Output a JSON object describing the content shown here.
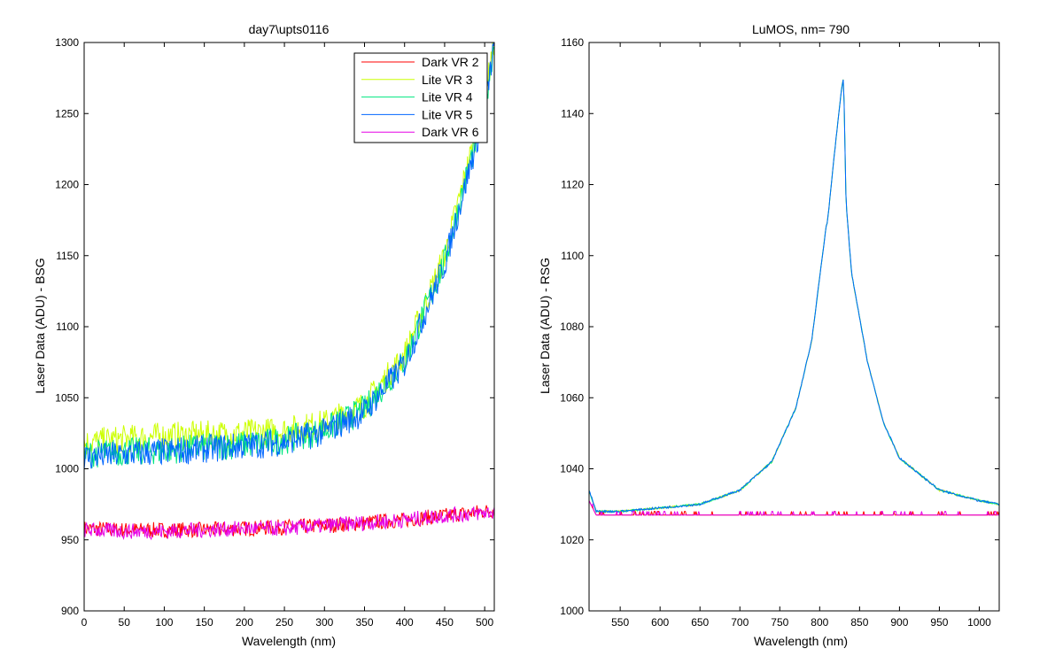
{
  "chart_data": [
    {
      "type": "line",
      "title": "day7\\upts0116",
      "xlabel": "Wavelength (nm)",
      "ylabel": "Laser Data (ADU) - BSG",
      "xlim": [
        0,
        512
      ],
      "ylim": [
        900,
        1300
      ],
      "xticks": [
        "0",
        "50",
        "100",
        "150",
        "200",
        "250",
        "300",
        "350",
        "400",
        "450",
        "500"
      ],
      "yticks": [
        "900",
        "950",
        "1000",
        "1050",
        "1100",
        "1150",
        "1200",
        "1250",
        "1300"
      ],
      "grid": false,
      "legend": "top-right",
      "series": [
        {
          "name": "Dark VR 2",
          "color": "#ff0000",
          "x": [
            0,
            50,
            100,
            150,
            200,
            250,
            300,
            350,
            400,
            450,
            500,
            512
          ],
          "y": [
            958,
            957,
            957,
            957,
            958,
            959,
            960,
            962,
            964,
            967,
            970,
            971
          ]
        },
        {
          "name": "Lite VR 3",
          "color": "#ccff00",
          "x": [
            0,
            50,
            100,
            150,
            200,
            250,
            300,
            350,
            400,
            450,
            500,
            512
          ],
          "y": [
            1018,
            1021,
            1023,
            1024,
            1025,
            1027,
            1032,
            1045,
            1080,
            1150,
            1260,
            1300
          ]
        },
        {
          "name": "Lite VR 4",
          "color": "#00e680",
          "x": [
            0,
            50,
            100,
            150,
            200,
            250,
            300,
            350,
            400,
            450,
            500,
            512
          ],
          "y": [
            1010,
            1012,
            1013,
            1015,
            1017,
            1020,
            1027,
            1042,
            1076,
            1146,
            1255,
            1300
          ]
        },
        {
          "name": "Lite VR 5",
          "color": "#0066ff",
          "x": [
            0,
            50,
            100,
            150,
            200,
            250,
            300,
            350,
            400,
            450,
            500,
            512
          ],
          "y": [
            1008,
            1010,
            1012,
            1014,
            1016,
            1019,
            1026,
            1040,
            1074,
            1144,
            1252,
            1300
          ]
        },
        {
          "name": "Dark VR 6",
          "color": "#e600e6",
          "x": [
            0,
            50,
            100,
            150,
            200,
            250,
            300,
            350,
            400,
            450,
            500,
            512
          ],
          "y": [
            957,
            956,
            956,
            957,
            958,
            958,
            960,
            962,
            964,
            967,
            969,
            970
          ]
        }
      ]
    },
    {
      "type": "line",
      "title": "LuMOS, nm= 790",
      "xlabel": "Wavelength (nm)",
      "ylabel": "Laser Data (ADU) - RSG",
      "xlim": [
        511,
        1025
      ],
      "ylim": [
        1000,
        1160
      ],
      "xticks": [
        "550",
        "600",
        "650",
        "700",
        "750",
        "800",
        "850",
        "900",
        "950",
        "1000"
      ],
      "yticks": [
        "1000",
        "1020",
        "1040",
        "1060",
        "1080",
        "1100",
        "1120",
        "1140",
        "1160"
      ],
      "grid": false,
      "series": [
        {
          "name": "Dark VR 2",
          "color": "#ff0000",
          "x": [
            511,
            520,
            600,
            700,
            800,
            900,
            1000,
            1025
          ],
          "y": [
            1031,
            1027,
            1027,
            1027,
            1027,
            1027,
            1027,
            1027
          ]
        },
        {
          "name": "Lite VR 3",
          "color": "#ccff00",
          "x": [
            511,
            520,
            550,
            600,
            650,
            700,
            740,
            770,
            790,
            800,
            808,
            810,
            820,
            828,
            830,
            833,
            840,
            860,
            880,
            900,
            950,
            1000,
            1025
          ],
          "y": [
            1034,
            1028,
            1028,
            1029,
            1030,
            1034,
            1042,
            1057,
            1076,
            1094,
            1108,
            1110,
            1132,
            1148,
            1150,
            1115,
            1095,
            1070,
            1053,
            1043,
            1034,
            1031,
            1030
          ]
        },
        {
          "name": "Lite VR 4",
          "color": "#00e680",
          "x": [
            511,
            520,
            550,
            600,
            650,
            700,
            740,
            770,
            790,
            800,
            808,
            810,
            820,
            828,
            830,
            833,
            840,
            860,
            880,
            900,
            950,
            1000,
            1025
          ],
          "y": [
            1034,
            1028,
            1028,
            1029,
            1030,
            1034,
            1042,
            1057,
            1076,
            1094,
            1108,
            1110,
            1132,
            1148,
            1150,
            1115,
            1095,
            1070,
            1053,
            1043,
            1034,
            1031,
            1030
          ]
        },
        {
          "name": "Lite VR 5",
          "color": "#0066ff",
          "x": [
            511,
            520,
            550,
            600,
            650,
            700,
            740,
            770,
            790,
            800,
            808,
            810,
            820,
            828,
            830,
            833,
            840,
            860,
            880,
            900,
            950,
            1000,
            1025
          ],
          "y": [
            1034,
            1028,
            1028,
            1029,
            1030,
            1034,
            1042,
            1057,
            1076,
            1094,
            1108,
            1110,
            1132,
            1148,
            1150,
            1115,
            1095,
            1070,
            1053,
            1043,
            1034,
            1031,
            1030
          ]
        },
        {
          "name": "Dark VR 6",
          "color": "#e600e6",
          "x": [
            511,
            520,
            600,
            700,
            800,
            900,
            1000,
            1025
          ],
          "y": [
            1031,
            1027,
            1027,
            1027,
            1027,
            1027,
            1027,
            1027
          ]
        }
      ]
    }
  ]
}
